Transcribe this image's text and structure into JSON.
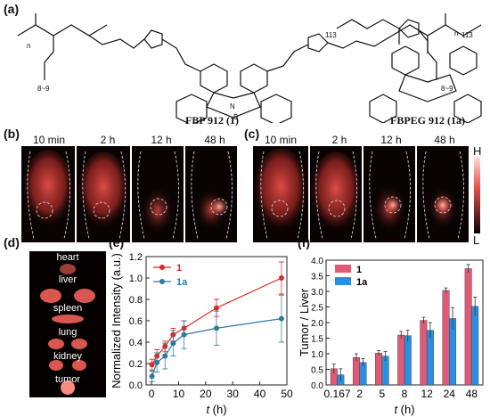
{
  "panels": {
    "a": "(a)",
    "b": "(b)",
    "c": "(c)",
    "d": "(d)",
    "e": "(e)",
    "f": "(f)"
  },
  "structures": {
    "left_name": "FBP 912 (1)",
    "right_name": "FBPEG 912 (1a)",
    "left_subscripts": [
      "n",
      "n",
      "8~9",
      "8~9"
    ],
    "right_subscripts": [
      "113",
      "113"
    ],
    "atom_labels": [
      "N",
      "B",
      "F",
      "F"
    ]
  },
  "imaging": {
    "times": [
      "10 min",
      "2 h",
      "12 h",
      "48 h"
    ],
    "scale_high": "H",
    "scale_low": "L",
    "colors": {
      "background": "#0a0303",
      "glow": "#e8504a",
      "bright": "#ffb0a0"
    }
  },
  "organs": [
    "heart",
    "liver",
    "spleen",
    "lung",
    "kidney",
    "tumor"
  ],
  "chart_data": [
    {
      "type": "line",
      "panel": "(e)",
      "xlabel": "t (h)",
      "ylabel": "Normalized Intensity (a.u.)",
      "xlim": [
        -2,
        50
      ],
      "ylim": [
        0,
        1.2
      ],
      "xticks": [
        0,
        10,
        20,
        30,
        40,
        50
      ],
      "yticks": [
        0.0,
        0.2,
        0.4,
        0.6,
        0.8,
        1.0,
        1.2
      ],
      "legend": "top-left",
      "series": [
        {
          "name": "1",
          "color": "#d62b2b",
          "x": [
            0.167,
            2,
            5,
            8,
            12,
            24,
            48
          ],
          "y": [
            0.19,
            0.27,
            0.36,
            0.47,
            0.53,
            0.72,
            1.0
          ],
          "err": [
            0.05,
            0.06,
            0.05,
            0.06,
            0.07,
            0.08,
            0.15
          ]
        },
        {
          "name": "1a",
          "color": "#2d7a9c",
          "x": [
            0.167,
            2,
            5,
            8,
            12,
            24,
            48
          ],
          "y": [
            0.08,
            0.21,
            0.27,
            0.39,
            0.47,
            0.53,
            0.62
          ],
          "err": [
            0.05,
            0.09,
            0.12,
            0.12,
            0.13,
            0.16,
            0.22
          ]
        }
      ]
    },
    {
      "type": "bar",
      "panel": "(f)",
      "xlabel": "t (h)",
      "ylabel": "Tumor / Liver",
      "categories": [
        "0.167",
        "2",
        "5",
        "8",
        "12",
        "24",
        "48"
      ],
      "ylim": [
        0,
        4.0
      ],
      "yticks": [
        0.0,
        0.5,
        1.0,
        1.5,
        2.0,
        2.5,
        3.0,
        3.5,
        4.0
      ],
      "legend": "top-left",
      "series": [
        {
          "name": "1",
          "color": "#e05a78",
          "values": [
            0.52,
            0.88,
            1.02,
            1.6,
            2.07,
            3.03,
            3.73
          ],
          "err": [
            0.15,
            0.12,
            0.08,
            0.12,
            0.1,
            0.08,
            0.13
          ]
        },
        {
          "name": "1a",
          "color": "#2b8fe0",
          "values": [
            0.32,
            0.72,
            0.92,
            1.58,
            1.75,
            2.13,
            2.52
          ],
          "err": [
            0.2,
            0.12,
            0.15,
            0.18,
            0.25,
            0.35,
            0.3
          ]
        }
      ]
    }
  ]
}
